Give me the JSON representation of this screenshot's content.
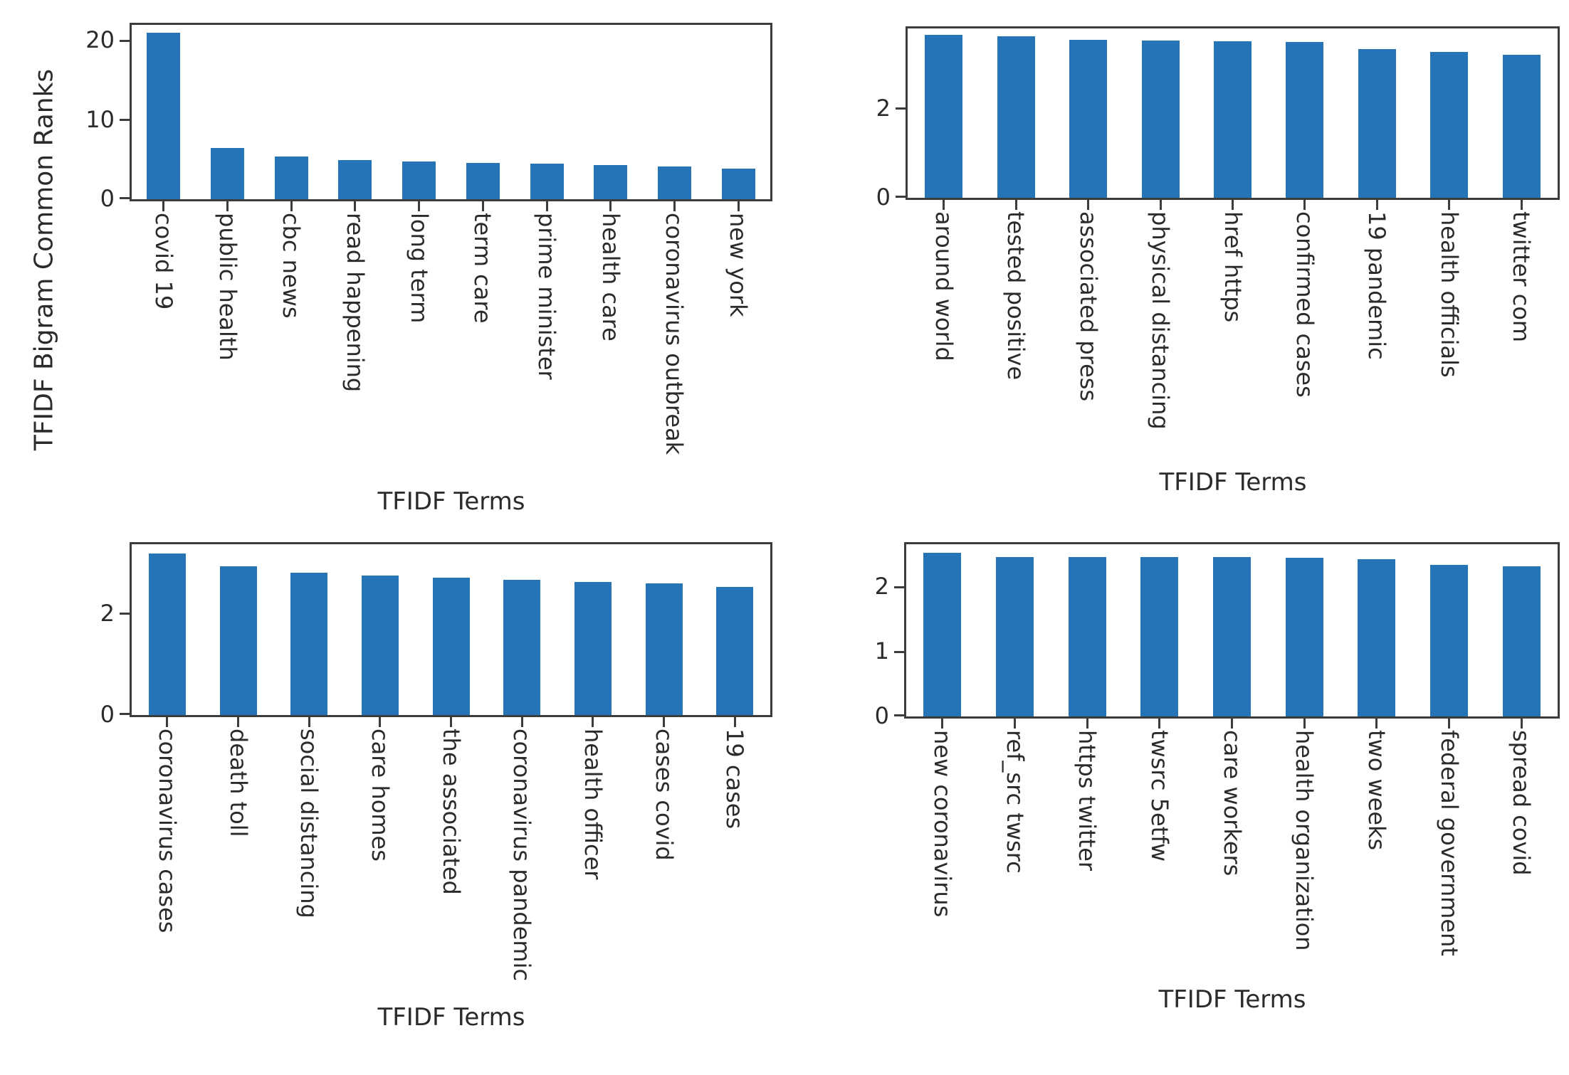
{
  "figure": {
    "ylabel": "TFIDF Bigram Common Ranks",
    "bar_color": "#2575b6",
    "spine_color": "#3c3c3c",
    "text_color": "#2b2b2b",
    "background": "#ffffff"
  },
  "chart_data": [
    {
      "id": "top-left",
      "type": "bar",
      "xlabel": "TFIDF Terms",
      "ylabel": "TFIDF Bigram Common Ranks",
      "ylim": [
        0,
        22
      ],
      "yticks": [
        0,
        10,
        20
      ],
      "grid": false,
      "legend": false,
      "categories": [
        "covid 19",
        "public health",
        "cbc news",
        "read happening",
        "long term",
        "term care",
        "prime minister",
        "health care",
        "coronavirus outbreak",
        "new york"
      ],
      "values": [
        21,
        6.5,
        5.4,
        4.9,
        4.75,
        4.6,
        4.5,
        4.35,
        4.1,
        3.9
      ]
    },
    {
      "id": "top-right",
      "type": "bar",
      "xlabel": "TFIDF Terms",
      "ylim": [
        0,
        3.8
      ],
      "yticks": [
        0,
        2
      ],
      "grid": false,
      "legend": false,
      "categories": [
        "around world",
        "tested positive",
        "associated press",
        "physical distancing",
        "href https",
        "confirmed cases",
        "19 pandemic",
        "health officials",
        "twitter com"
      ],
      "values": [
        3.65,
        3.62,
        3.55,
        3.53,
        3.51,
        3.49,
        3.33,
        3.27,
        3.21
      ]
    },
    {
      "id": "bottom-left",
      "type": "bar",
      "xlabel": "TFIDF Terms",
      "ylim": [
        0,
        3.38
      ],
      "yticks": [
        0,
        2
      ],
      "grid": false,
      "legend": false,
      "categories": [
        "coronavirus cases",
        "death toll",
        "social distancing",
        "care homes",
        "the associated",
        "coronavirus pandemic",
        "health officer",
        "cases covid",
        "19 cases"
      ],
      "values": [
        3.2,
        2.95,
        2.81,
        2.76,
        2.72,
        2.68,
        2.64,
        2.6,
        2.54
      ]
    },
    {
      "id": "bottom-right",
      "type": "bar",
      "xlabel": "TFIDF Terms",
      "ylim": [
        0,
        2.66
      ],
      "yticks": [
        0,
        1,
        2
      ],
      "grid": false,
      "legend": false,
      "categories": [
        "new coronavirus",
        "ref_src twsrc",
        "https twitter",
        "twsrc 5etfw",
        "care workers",
        "health organization",
        "two weeks",
        "federal government",
        "spread covid"
      ],
      "values": [
        2.53,
        2.46,
        2.46,
        2.46,
        2.46,
        2.45,
        2.43,
        2.34,
        2.32
      ]
    }
  ]
}
